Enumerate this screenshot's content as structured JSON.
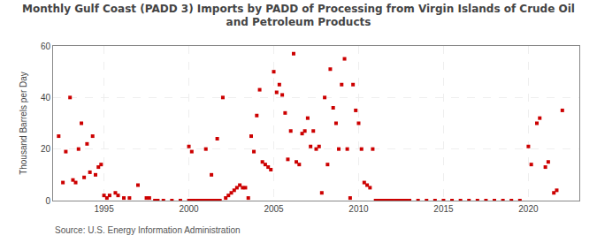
{
  "chart_data": {
    "type": "scatter",
    "title": "Monthly Gulf Coast (PADD 3) Imports by PADD of Processing from Virgin Islands of Crude Oil\nand Petroleum Products",
    "ylabel": "Thousand Barrels per Day",
    "annotations": [
      "Source: U.S. Energy Information Administration"
    ],
    "color": "#cc0000",
    "marker": "square",
    "grid": true,
    "xlim": [
      1992.0,
      2023.0
    ],
    "ylim": [
      0,
      60
    ],
    "xticks": [
      1995,
      2000,
      2005,
      2010,
      2015,
      2020
    ],
    "yticks": [
      0,
      20,
      40,
      60
    ],
    "x": [
      1992.33,
      1992.58,
      1992.75,
      1993.0,
      1993.17,
      1993.33,
      1993.5,
      1993.67,
      1993.83,
      1994.0,
      1994.17,
      1994.33,
      1994.5,
      1994.67,
      1994.83,
      1995.0,
      1995.17,
      1995.33,
      1995.67,
      1995.83,
      1996.17,
      1996.5,
      1997.0,
      1997.5,
      1997.67,
      1998.0,
      1998.17,
      1998.5,
      1999.0,
      1999.5,
      2000.0,
      2000.17,
      2000.33,
      2000.5,
      2000.67,
      2000.83,
      2001.0,
      2001.17,
      2001.33,
      2001.5,
      2001.67,
      2001.83,
      2000.0,
      2000.17,
      2001.0,
      2001.33,
      2001.67,
      2002.0,
      2002.17,
      2002.33,
      2002.5,
      2002.67,
      2002.83,
      2003.0,
      2003.17,
      2003.33,
      2003.5,
      2003.67,
      2003.83,
      2004.0,
      2004.17,
      2004.33,
      2004.5,
      2004.67,
      2004.83,
      2005.0,
      2005.17,
      2005.33,
      2005.5,
      2005.67,
      2005.83,
      2006.0,
      2006.17,
      2006.33,
      2006.5,
      2006.67,
      2006.83,
      2007.0,
      2007.17,
      2007.33,
      2007.5,
      2007.67,
      2007.83,
      2008.0,
      2008.17,
      2008.33,
      2008.5,
      2008.67,
      2008.83,
      2009.0,
      2009.17,
      2009.33,
      2009.5,
      2009.67,
      2009.83,
      2010.0,
      2010.17,
      2010.33,
      2010.5,
      2010.67,
      2010.83,
      2011.0,
      2011.17,
      2011.33,
      2011.5,
      2011.67,
      2011.83,
      2012.0,
      2012.17,
      2012.33,
      2012.5,
      2012.67,
      2012.83,
      2013.0,
      2013.5,
      2014.0,
      2014.5,
      2015.0,
      2015.5,
      2016.0,
      2016.5,
      2017.0,
      2017.5,
      2018.0,
      2018.5,
      2019.0,
      2019.5,
      2020.0,
      2020.17,
      2020.5,
      2020.67,
      2021.0,
      2021.17,
      2021.5,
      2021.67,
      2022.0
    ],
    "values": [
      25,
      7,
      19,
      40,
      8,
      7,
      20,
      30,
      9,
      22,
      11,
      25,
      10,
      13,
      14,
      2,
      1,
      2,
      3,
      2,
      1,
      1,
      6,
      1,
      1,
      0,
      0,
      0,
      0,
      0,
      0,
      0,
      0,
      0,
      0,
      0,
      0,
      0,
      0,
      0,
      0,
      0,
      21,
      19,
      20,
      10,
      24,
      40,
      1,
      2,
      3,
      4,
      5,
      6,
      5,
      5,
      1,
      25,
      19,
      33,
      43,
      15,
      14,
      13,
      12,
      50,
      42,
      45,
      41,
      34,
      16,
      27,
      57,
      15,
      14,
      26,
      27,
      32,
      21,
      27,
      20,
      21,
      3,
      40,
      14,
      51,
      36,
      30,
      20,
      45,
      55,
      20,
      1,
      45,
      35,
      30,
      20,
      7,
      6,
      5,
      20,
      0,
      0,
      0,
      0,
      0,
      0,
      0,
      0,
      0,
      0,
      0,
      0,
      0,
      0,
      0,
      0,
      0,
      0,
      0,
      0,
      0,
      0,
      0,
      0,
      0,
      0,
      21,
      14,
      30,
      32,
      13,
      15,
      3,
      4,
      35
    ]
  }
}
